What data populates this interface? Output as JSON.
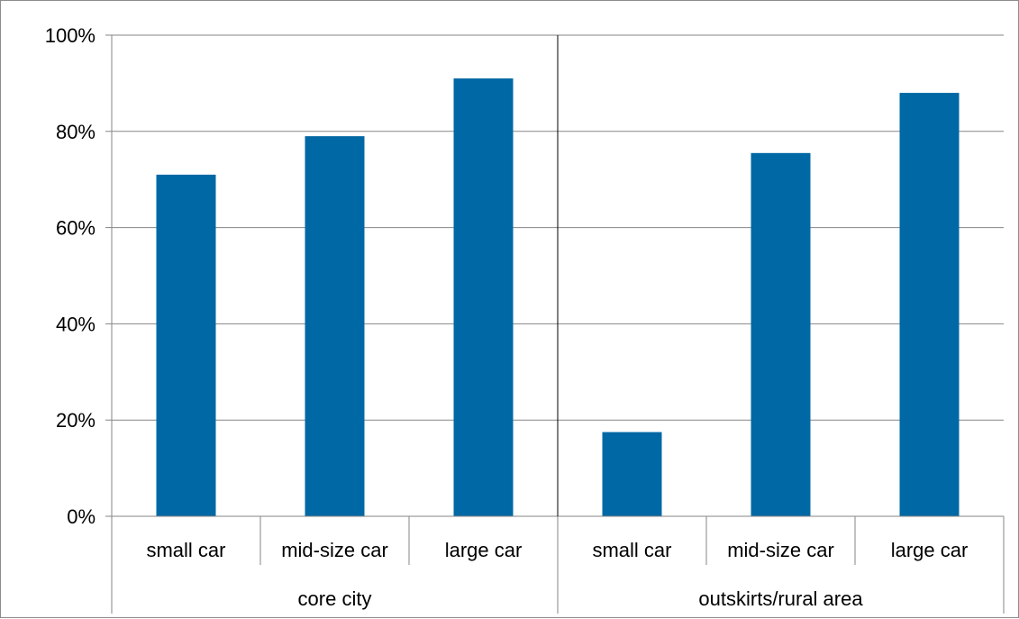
{
  "chart_data": {
    "type": "bar",
    "groups": [
      {
        "name": "core city",
        "categories": [
          "small car",
          "mid-size car",
          "large car"
        ]
      },
      {
        "name": "outskirts/rural area",
        "categories": [
          "small car",
          "mid-size car",
          "large car"
        ]
      }
    ],
    "categories": [
      "small car",
      "mid-size car",
      "large car",
      "small car",
      "mid-size car",
      "large car"
    ],
    "series": [
      {
        "values": [
          0.71,
          0.79,
          0.91,
          0.175,
          0.755,
          0.88
        ]
      }
    ],
    "yticks": [
      "0%",
      "20%",
      "40%",
      "60%",
      "80%",
      "100%"
    ],
    "ylim": [
      0,
      1
    ],
    "grid": true,
    "bar_color": "#0068A4",
    "title": "",
    "xlabel": "",
    "ylabel": ""
  }
}
